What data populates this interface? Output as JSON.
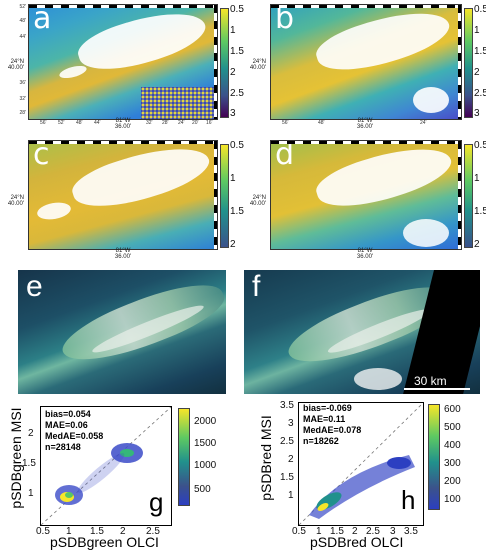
{
  "maps": [
    {
      "letter": "a",
      "colorbar_ticks": [
        "0.5",
        "1",
        "1.5",
        "2",
        "2.5",
        "3"
      ]
    },
    {
      "letter": "b",
      "colorbar_ticks": [
        "0.5",
        "1",
        "1.5",
        "2",
        "2.5",
        "3"
      ]
    },
    {
      "letter": "c",
      "colorbar_ticks": [
        "0.5",
        "1",
        "1.5",
        "2"
      ]
    },
    {
      "letter": "d",
      "colorbar_ticks": [
        "0.5",
        "1",
        "1.5",
        "2"
      ]
    }
  ],
  "map_axis": {
    "lat_label": "24°N\n40.00'",
    "lon_label": "81°W\n36.00'",
    "y_ticks": [
      "52'",
      "48'",
      "44'",
      "40'",
      "36'",
      "32'",
      "28'"
    ],
    "x_ticks": [
      "56'",
      "52'",
      "48'",
      "44'",
      "40'",
      "32'",
      "28'",
      "24'",
      "20'",
      "16'"
    ]
  },
  "photos": [
    {
      "letter": "e"
    },
    {
      "letter": "f",
      "scale_label": "30 km"
    }
  ],
  "scatters": [
    {
      "letter": "g",
      "stats": [
        "bias=0.054",
        "MAE=0.06",
        "MedAE=0.058",
        "n=28148"
      ],
      "xlabel": "pSDBgreen OLCI",
      "ylabel": "pSDBgreen MSI",
      "x_ticks": [
        "0.5",
        "1",
        "1.5",
        "2",
        "2.5"
      ],
      "y_ticks": [
        "1",
        "1.5",
        "2"
      ],
      "cbar_ticks": [
        "2000",
        "1500",
        "1000",
        "500"
      ]
    },
    {
      "letter": "h",
      "stats": [
        "bias=-0.069",
        "MAE=0.11",
        "MedAE=0.078",
        "n=18262"
      ],
      "xlabel": "pSDBred OLCI",
      "ylabel": "pSDBred MSI",
      "x_ticks": [
        "0.5",
        "1",
        "1.5",
        "2",
        "2.5",
        "3",
        "3.5"
      ],
      "y_ticks": [
        "1",
        "1.5",
        "2",
        "2.5",
        "3",
        "3.5"
      ],
      "cbar_ticks": [
        "600",
        "500",
        "400",
        "300",
        "200",
        "100"
      ]
    }
  ]
}
